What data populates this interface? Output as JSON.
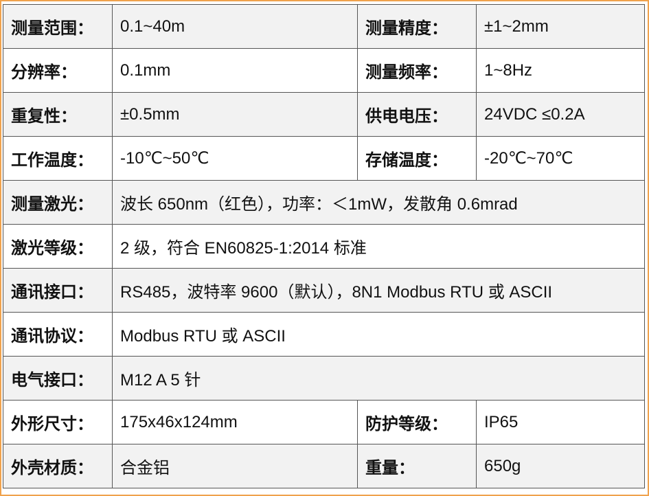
{
  "table": {
    "rows": [
      [
        "测量范围：",
        "0.1~40m",
        "测量精度：",
        "±1~2mm"
      ],
      [
        "分辨率：",
        "0.1mm",
        "测量频率：",
        "1~8Hz"
      ],
      [
        "重复性：",
        "±0.5mm",
        "供电电压：",
        "24VDC  ≤0.2A"
      ],
      [
        "工作温度：",
        "-10℃~50℃",
        "存储温度：",
        "-20℃~70℃"
      ],
      [
        "测量激光：",
        "波长 650nm（红色），功率：＜1mW，发散角 0.6mrad"
      ],
      [
        "激光等级：",
        "2 级，符合 EN60825-1:2014 标准"
      ],
      [
        "通讯接口：",
        "RS485，波特率 9600（默认），8N1     Modbus RTU 或 ASCII"
      ],
      [
        "通讯协议：",
        "Modbus RTU 或 ASCII"
      ],
      [
        "电气接口：",
        "M12 A 5 针"
      ],
      [
        "外形尺寸：",
        "175x46x124mm",
        "防护等级：",
        "IP65"
      ],
      [
        "外壳材质：",
        "合金铝",
        "重量：",
        "650g"
      ]
    ]
  }
}
